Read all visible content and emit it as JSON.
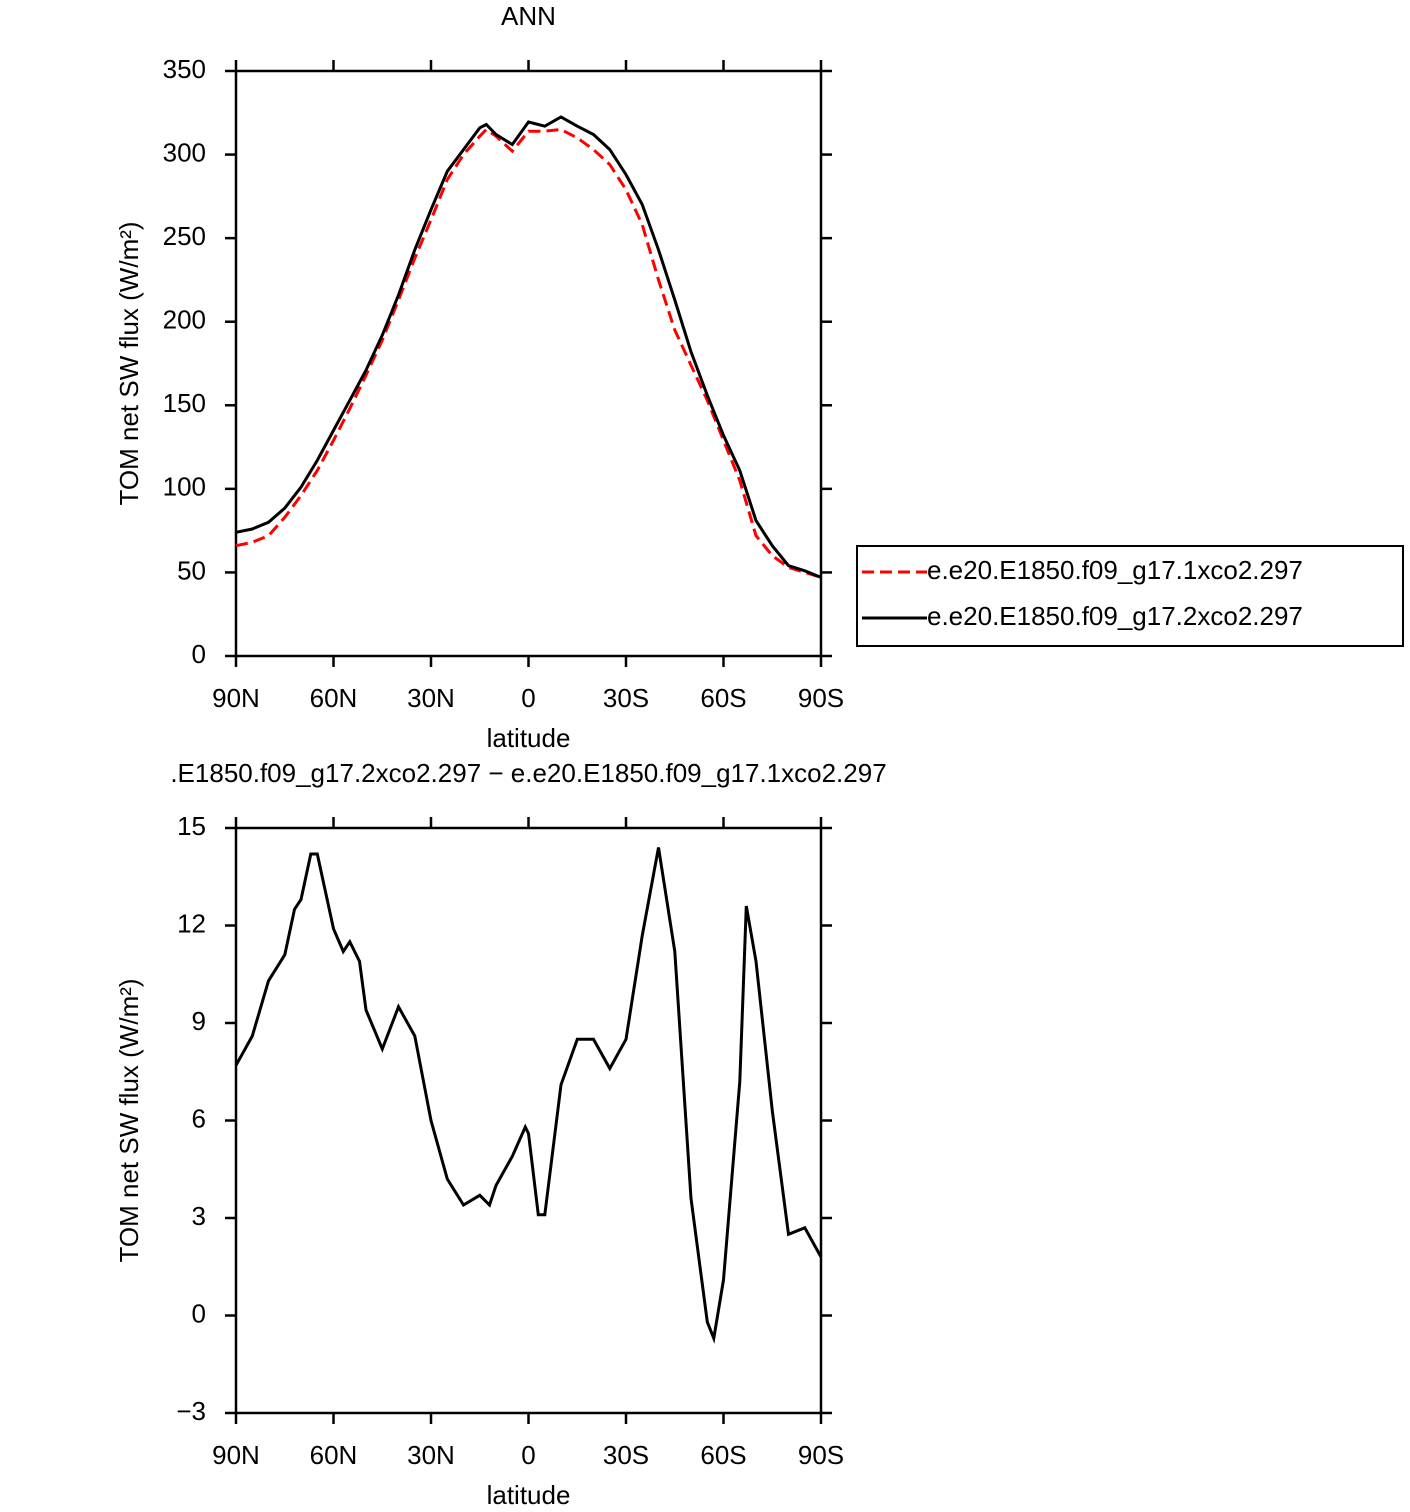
{
  "chart_data": [
    {
      "type": "line",
      "title": "ANN",
      "xlabel": "latitude",
      "ylabel": "TOM net SW flux (W/m²)",
      "x": [
        90,
        85,
        80,
        75,
        70,
        65,
        60,
        55,
        50,
        45,
        40,
        35,
        30,
        25,
        20,
        15,
        13,
        10,
        5,
        0,
        -5,
        -10,
        -15,
        -20,
        -25,
        -30,
        -35,
        -40,
        -45,
        -50,
        -55,
        -60,
        -65,
        -70,
        -75,
        -80,
        -85,
        -90
      ],
      "xlim": [
        90,
        -90
      ],
      "xticks": [
        {
          "value": 90,
          "label": "90N"
        },
        {
          "value": 60,
          "label": "60N"
        },
        {
          "value": 30,
          "label": "30N"
        },
        0,
        {
          "value": -30,
          "label": "30S"
        },
        {
          "value": -60,
          "label": "60S"
        },
        {
          "value": -90,
          "label": "90S"
        }
      ],
      "ylim": [
        0,
        350
      ],
      "yticks": [
        0,
        50,
        100,
        150,
        200,
        250,
        300,
        350
      ],
      "legend": "right",
      "series": [
        {
          "name": "e.e20.E1850.f09_g17.1xco2.297",
          "color": "#ff0000",
          "dash": true,
          "values": [
            66,
            68,
            72,
            83,
            96,
            111,
            129,
            148,
            168,
            189,
            213,
            238,
            261,
            285,
            300,
            311,
            315,
            311,
            302,
            314,
            314,
            315,
            310,
            303,
            294,
            279,
            258,
            225,
            195,
            174,
            153,
            129,
            105,
            72,
            60,
            53,
            50,
            47
          ]
        },
        {
          "name": "e.e20.E1850.f09_g17.2xco2.297",
          "color": "#000000",
          "dash": false,
          "values": [
            74,
            76,
            80,
            88.5,
            101,
            117,
            135,
            153,
            171,
            192,
            216,
            243,
            267,
            290,
            303,
            316,
            318,
            312,
            306,
            319.5,
            317,
            322.5,
            317,
            312,
            303,
            288,
            270,
            243,
            213,
            182,
            156,
            132,
            111,
            81,
            66,
            54,
            51,
            47
          ]
        }
      ]
    },
    {
      "type": "line",
      "title": ".E1850.f09_g17.2xco2.297 − e.e20.E1850.f09_g17.1xco2.297",
      "xlabel": "latitude",
      "ylabel": "TOM net SW flux (W/m²)",
      "x": [
        90,
        85,
        80,
        75,
        72,
        70,
        67,
        65,
        60,
        57,
        55,
        52,
        50,
        45,
        40,
        35,
        30,
        25,
        20,
        15,
        12,
        10,
        5,
        1,
        0,
        -3,
        -5,
        -10,
        -15,
        -20,
        -25,
        -30,
        -35,
        -40,
        -45,
        -50,
        -55,
        -57,
        -60,
        -65,
        -67,
        -70,
        -75,
        -80,
        -85,
        -90
      ],
      "xlim": [
        90,
        -90
      ],
      "xticks": [
        {
          "value": 90,
          "label": "90N"
        },
        {
          "value": 60,
          "label": "60N"
        },
        {
          "value": 30,
          "label": "30N"
        },
        0,
        {
          "value": -30,
          "label": "30S"
        },
        {
          "value": -60,
          "label": "60S"
        },
        {
          "value": -90,
          "label": "90S"
        }
      ],
      "ylim": [
        -3,
        15
      ],
      "yticks": [
        {
          "value": -3,
          "label": "−3"
        },
        0,
        3,
        6,
        9,
        12,
        15
      ],
      "color": "#000000",
      "values": [
        7.7,
        8.6,
        10.3,
        11.1,
        12.5,
        12.8,
        14.2,
        14.2,
        11.9,
        11.2,
        11.5,
        10.9,
        9.4,
        8.2,
        9.5,
        8.6,
        6.0,
        4.2,
        3.4,
        3.7,
        3.4,
        4.0,
        4.9,
        5.8,
        5.6,
        3.1,
        3.1,
        7.1,
        8.5,
        8.5,
        7.6,
        8.5,
        11.7,
        14.4,
        11.2,
        3.6,
        -0.2,
        -0.7,
        1.1,
        7.2,
        12.6,
        10.9,
        6.3,
        2.5,
        2.7,
        1.8
      ]
    }
  ]
}
